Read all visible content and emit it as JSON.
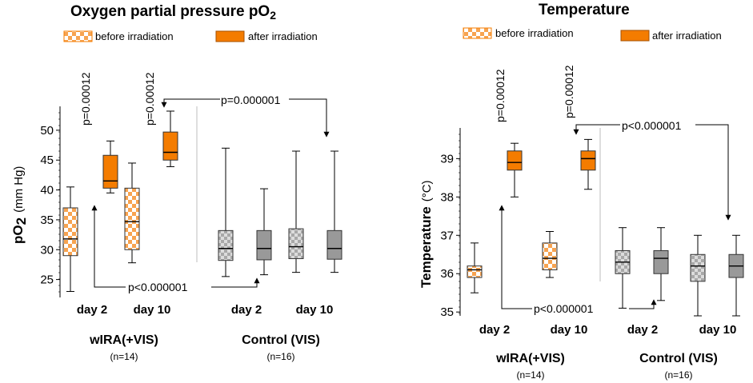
{
  "colors": {
    "after_orange": "#f47c00",
    "before_orange": "#f7a350",
    "control_gray": "#999999",
    "control_check_light": "#dcdcdc",
    "control_check_dark": "#a8a8a8"
  },
  "chart_data": [
    {
      "type": "box",
      "title": "Oxygen partial pressure pO",
      "title_sub": "2",
      "ylabel_main": "pO",
      "ylabel_sub": "2",
      "ylabel_unit": "(mm Hg)",
      "ylim": [
        22,
        54
      ],
      "yticks": [
        25,
        30,
        35,
        40,
        45,
        50
      ],
      "legend": [
        "before irradiation",
        "after irradiation"
      ],
      "legend_position": "top",
      "categories": [
        "day 2",
        "day 10",
        "day 2",
        "day 10"
      ],
      "groups": [
        {
          "label": "wIRA(+VIS)",
          "n": "(n=14)"
        },
        {
          "label": "Control (VIS)",
          "n": "(n=16)"
        }
      ],
      "series": [
        {
          "name": "before irradiation",
          "boxes": [
            {
              "min": 23.0,
              "q1": 29.0,
              "median": 31.8,
              "q3": 37.0,
              "max": 40.5
            },
            {
              "min": 27.8,
              "q1": 30.0,
              "median": 34.7,
              "q3": 40.3,
              "max": 44.5
            },
            {
              "min": 25.5,
              "q1": 28.2,
              "median": 30.2,
              "q3": 33.2,
              "max": 47.0
            },
            {
              "min": 26.2,
              "q1": 28.5,
              "median": 30.5,
              "q3": 33.5,
              "max": 46.5
            }
          ]
        },
        {
          "name": "after irradiation",
          "boxes": [
            {
              "min": 39.5,
              "q1": 40.3,
              "median": 41.5,
              "q3": 45.8,
              "max": 48.2
            },
            {
              "min": 43.9,
              "q1": 45.0,
              "median": 46.3,
              "q3": 49.7,
              "max": 53.2
            },
            {
              "min": 25.8,
              "q1": 28.3,
              "median": 30.2,
              "q3": 33.2,
              "max": 40.2
            },
            {
              "min": 26.2,
              "q1": 28.4,
              "median": 30.2,
              "q3": 33.2,
              "max": 46.5
            }
          ]
        }
      ],
      "annotations": {
        "p_day2": "p=0.00012",
        "p_day10": "p=0.00012",
        "p_top": "p=0.000001",
        "p_bottom": "p<0.000001"
      }
    },
    {
      "type": "box",
      "title": "Temperature",
      "ylabel_main": "Temperature",
      "ylabel_unit": "(°C)",
      "ylim": [
        34.9,
        39.8
      ],
      "yticks": [
        35,
        36,
        37,
        38,
        39
      ],
      "legend": [
        "before irradiation",
        "after irradiation"
      ],
      "legend_position": "top",
      "categories": [
        "day 2",
        "day 10",
        "day 2",
        "day 10"
      ],
      "groups": [
        {
          "label": "wIRA(+VIS)",
          "n": "(n=14)"
        },
        {
          "label": "Control (VIS)",
          "n": "(n=16)"
        }
      ],
      "series": [
        {
          "name": "before irradiation",
          "boxes": [
            {
              "min": 35.5,
              "q1": 35.9,
              "median": 36.1,
              "q3": 36.2,
              "max": 36.8
            },
            {
              "min": 35.9,
              "q1": 36.1,
              "median": 36.4,
              "q3": 36.8,
              "max": 37.1
            },
            {
              "min": 35.1,
              "q1": 36.0,
              "median": 36.3,
              "q3": 36.6,
              "max": 37.2
            },
            {
              "min": 34.9,
              "q1": 35.8,
              "median": 36.2,
              "q3": 36.5,
              "max": 37.0
            }
          ]
        },
        {
          "name": "after irradiation",
          "boxes": [
            {
              "min": 38.0,
              "q1": 38.7,
              "median": 38.9,
              "q3": 39.2,
              "max": 39.4
            },
            {
              "min": 38.2,
              "q1": 38.7,
              "median": 39.0,
              "q3": 39.2,
              "max": 39.5
            },
            {
              "min": 35.3,
              "q1": 36.0,
              "median": 36.4,
              "q3": 36.6,
              "max": 37.2
            },
            {
              "min": 34.9,
              "q1": 35.9,
              "median": 36.2,
              "q3": 36.5,
              "max": 37.0
            }
          ]
        }
      ],
      "annotations": {
        "p_day2": "p=0.00012",
        "p_day10": "p=0.00012",
        "p_top": "p<0.000001",
        "p_bottom": "p<0.000001"
      }
    }
  ]
}
